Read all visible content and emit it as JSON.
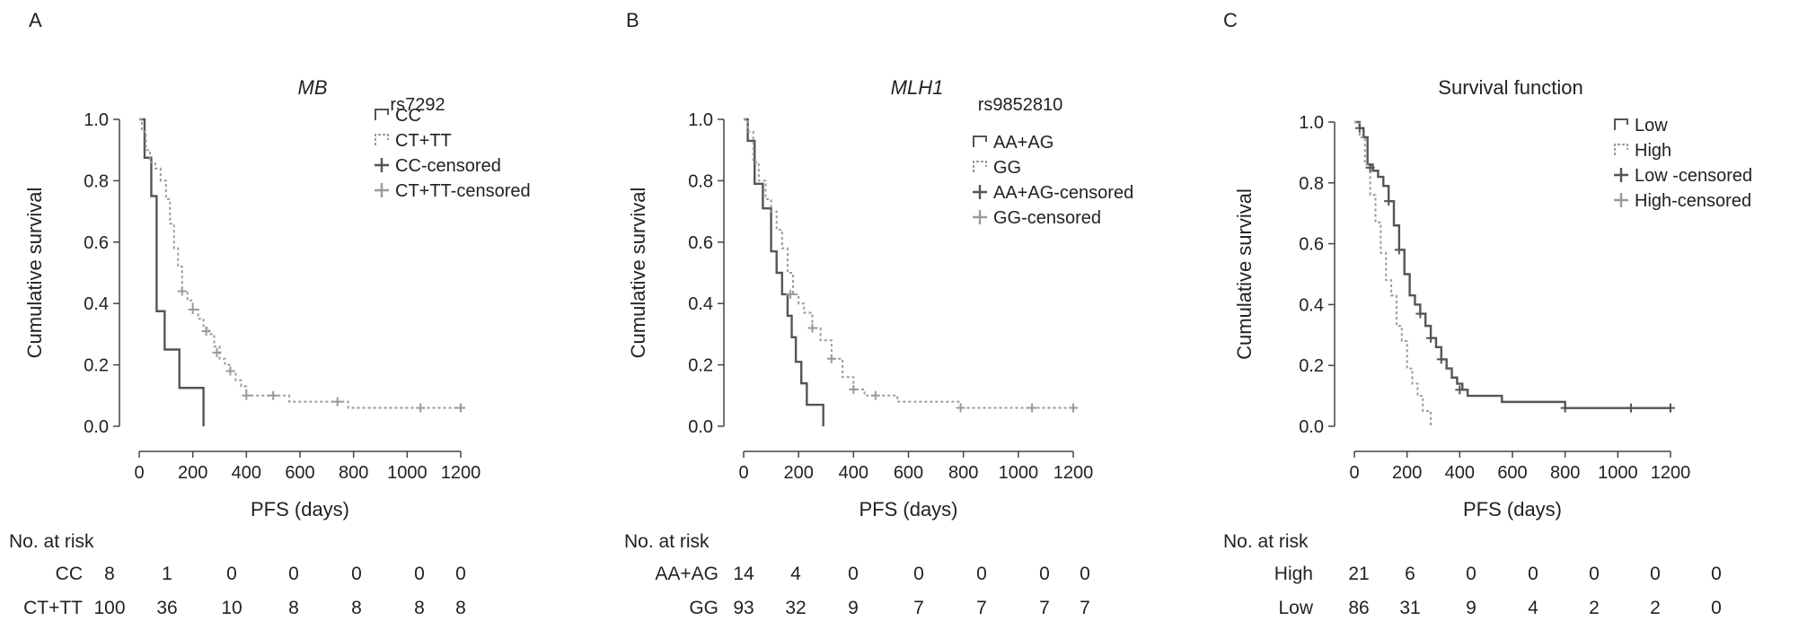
{
  "chart_data": [
    {
      "type": "line",
      "panel_label": "A",
      "title": "MB",
      "legend_title": "rs7292",
      "xlabel": "PFS (days)",
      "ylabel": "Cumulative survival",
      "xlim": [
        0,
        1200
      ],
      "ylim": [
        0,
        1.0
      ],
      "xticks": [
        "0",
        "200",
        "400",
        "600",
        "800",
        "1000",
        "1200"
      ],
      "yticks": [
        "0.0",
        "0.2",
        "0.4",
        "0.6",
        "0.8",
        "1.0"
      ],
      "legend": [
        "CC",
        "CT+TT",
        "CC-censored",
        "CT+TT-censored"
      ],
      "series": [
        {
          "name": "CC",
          "color": "#555555",
          "dash": false,
          "x": [
            0,
            20,
            45,
            65,
            95,
            150,
            240
          ],
          "y": [
            1.0,
            0.875,
            0.75,
            0.375,
            0.25,
            0.125,
            0.0
          ]
        },
        {
          "name": "CT+TT",
          "color": "#9a9a9a",
          "dash": true,
          "x": [
            0,
            10,
            25,
            40,
            60,
            80,
            100,
            115,
            130,
            145,
            160,
            180,
            200,
            220,
            240,
            260,
            280,
            300,
            320,
            340,
            360,
            380,
            400,
            430,
            470,
            520,
            560,
            620,
            700,
            780,
            850,
            1000,
            1200
          ],
          "y": [
            1.0,
            0.96,
            0.9,
            0.86,
            0.84,
            0.8,
            0.74,
            0.66,
            0.58,
            0.52,
            0.44,
            0.41,
            0.38,
            0.35,
            0.32,
            0.3,
            0.26,
            0.22,
            0.2,
            0.18,
            0.15,
            0.13,
            0.1,
            0.1,
            0.1,
            0.1,
            0.08,
            0.08,
            0.08,
            0.06,
            0.06,
            0.06,
            0.06
          ]
        }
      ],
      "censored": [
        {
          "series": "CT+TT",
          "x": [
            160,
            200,
            250,
            290,
            340,
            400,
            500,
            740,
            1050,
            1200
          ],
          "y": [
            0.44,
            0.38,
            0.31,
            0.24,
            0.18,
            0.1,
            0.1,
            0.08,
            0.06,
            0.06
          ]
        }
      ],
      "risk_table": {
        "heading": "No. at risk",
        "rows": [
          {
            "label": "CC",
            "values": [
              "8",
              "1",
              "0",
              "0",
              "0",
              "0",
              "0"
            ]
          },
          {
            "label": "CT+TT",
            "values": [
              "100",
              "36",
              "10",
              "8",
              "8",
              "8",
              "8"
            ]
          }
        ]
      }
    },
    {
      "type": "line",
      "panel_label": "B",
      "title": "MLH1",
      "legend_title": "rs9852810",
      "xlabel": "PFS (days)",
      "ylabel": "Cumulative survival",
      "xlim": [
        0,
        1200
      ],
      "ylim": [
        0,
        1.0
      ],
      "xticks": [
        "0",
        "200",
        "400",
        "600",
        "800",
        "1000",
        "1200"
      ],
      "yticks": [
        "0.0",
        "0.2",
        "0.4",
        "0.6",
        "0.8",
        "1.0"
      ],
      "legend": [
        "AA+AG",
        "GG",
        "AA+AG-censored",
        "GG-censored"
      ],
      "series": [
        {
          "name": "AA+AG",
          "color": "#555555",
          "dash": false,
          "x": [
            0,
            15,
            40,
            70,
            100,
            120,
            140,
            160,
            175,
            190,
            210,
            230,
            260,
            290
          ],
          "y": [
            1.0,
            0.93,
            0.79,
            0.71,
            0.57,
            0.5,
            0.43,
            0.36,
            0.29,
            0.21,
            0.14,
            0.07,
            0.07,
            0.0
          ]
        },
        {
          "name": "GG",
          "color": "#9a9a9a",
          "dash": true,
          "x": [
            0,
            15,
            35,
            55,
            80,
            100,
            120,
            140,
            160,
            180,
            200,
            220,
            250,
            280,
            320,
            360,
            400,
            440,
            480,
            520,
            560,
            640,
            720,
            790,
            850,
            1000,
            1200
          ],
          "y": [
            1.0,
            0.96,
            0.86,
            0.8,
            0.74,
            0.7,
            0.64,
            0.58,
            0.5,
            0.43,
            0.4,
            0.37,
            0.32,
            0.28,
            0.22,
            0.16,
            0.12,
            0.1,
            0.1,
            0.1,
            0.08,
            0.08,
            0.08,
            0.06,
            0.06,
            0.06,
            0.06
          ]
        }
      ],
      "censored": [
        {
          "series": "GG",
          "x": [
            170,
            250,
            320,
            400,
            480,
            790,
            1050,
            1200
          ],
          "y": [
            0.43,
            0.32,
            0.22,
            0.12,
            0.1,
            0.06,
            0.06,
            0.06
          ]
        }
      ],
      "risk_table": {
        "heading": "No. at risk",
        "rows": [
          {
            "label": "AA+AG",
            "values": [
              "14",
              "4",
              "0",
              "0",
              "0",
              "0",
              "0"
            ]
          },
          {
            "label": "GG",
            "values": [
              "93",
              "32",
              "9",
              "7",
              "7",
              "7",
              "7"
            ]
          }
        ]
      }
    },
    {
      "type": "line",
      "panel_label": "C",
      "title": "Survival function",
      "legend_title": "",
      "xlabel": "PFS (days)",
      "ylabel": "Cumulative survival",
      "xlim": [
        0,
        1200
      ],
      "ylim": [
        0,
        1.0
      ],
      "xticks": [
        "0",
        "200",
        "400",
        "600",
        "800",
        "1000",
        "1200"
      ],
      "yticks": [
        "0.0",
        "0.2",
        "0.4",
        "0.6",
        "0.8",
        "1.0"
      ],
      "legend": [
        "Low",
        "High",
        "Low   -censored",
        "High-censored"
      ],
      "series": [
        {
          "name": "Low",
          "color": "#555555",
          "dash": false,
          "x": [
            0,
            20,
            35,
            50,
            70,
            90,
            110,
            130,
            150,
            170,
            190,
            210,
            230,
            250,
            270,
            290,
            310,
            330,
            350,
            370,
            390,
            410,
            430,
            470,
            520,
            560,
            700,
            800,
            1000,
            1200
          ],
          "y": [
            1.0,
            0.98,
            0.95,
            0.86,
            0.84,
            0.82,
            0.79,
            0.74,
            0.66,
            0.58,
            0.5,
            0.43,
            0.4,
            0.37,
            0.33,
            0.29,
            0.26,
            0.22,
            0.19,
            0.16,
            0.14,
            0.12,
            0.1,
            0.1,
            0.1,
            0.08,
            0.08,
            0.06,
            0.06,
            0.06
          ]
        },
        {
          "name": "High",
          "color": "#9a9a9a",
          "dash": true,
          "x": [
            0,
            20,
            40,
            60,
            80,
            100,
            120,
            140,
            160,
            180,
            200,
            220,
            240,
            260,
            290
          ],
          "y": [
            1.0,
            0.95,
            0.86,
            0.76,
            0.67,
            0.57,
            0.48,
            0.43,
            0.33,
            0.28,
            0.19,
            0.14,
            0.1,
            0.05,
            0.0
          ]
        }
      ],
      "censored": [
        {
          "series": "Low",
          "x": [
            20,
            60,
            130,
            170,
            250,
            290,
            330,
            400,
            800,
            1050,
            1200
          ],
          "y": [
            0.98,
            0.85,
            0.74,
            0.58,
            0.37,
            0.29,
            0.22,
            0.12,
            0.06,
            0.06,
            0.06
          ]
        }
      ],
      "risk_table": {
        "heading": "No. at risk",
        "rows": [
          {
            "label": "High",
            "values": [
              "21",
              "6",
              "0",
              "0",
              "0",
              "0",
              "0"
            ]
          },
          {
            "label": "Low",
            "values": [
              "86",
              "31",
              "9",
              "4",
              "2",
              "2",
              "0"
            ]
          }
        ]
      }
    }
  ]
}
